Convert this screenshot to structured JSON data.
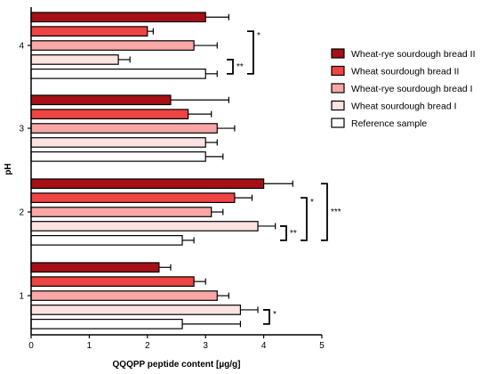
{
  "chart_data": {
    "type": "bar",
    "orientation": "horizontal",
    "title": "",
    "xlabel": "QQQPP peptide content [µg/g]",
    "ylabel": "pH",
    "xlim": [
      0,
      5
    ],
    "xticks": [
      "0",
      "1",
      "2",
      "3",
      "4",
      "5"
    ],
    "categories": [
      "1",
      "2",
      "3",
      "4"
    ],
    "legend_position": "right",
    "series": [
      {
        "name": "Wheat-rye sourdough bread II",
        "color": "#a50f15",
        "values": [
          2.2,
          4.0,
          2.4,
          3.0
        ],
        "errors": [
          0.2,
          0.5,
          1.0,
          0.4
        ]
      },
      {
        "name": "Wheat sourdough bread II",
        "color": "#ef4444",
        "values": [
          2.8,
          3.5,
          2.7,
          2.0
        ],
        "errors": [
          0.2,
          0.3,
          0.4,
          0.1
        ]
      },
      {
        "name": "Wheat-rye sourdough bread I",
        "color": "#f9a7a7",
        "values": [
          3.2,
          3.1,
          3.2,
          2.8
        ],
        "errors": [
          0.2,
          0.2,
          0.3,
          0.4
        ]
      },
      {
        "name": "Wheat sourdough bread I",
        "color": "#fde2e2",
        "values": [
          3.6,
          3.9,
          3.0,
          1.5
        ],
        "errors": [
          0.3,
          0.3,
          0.2,
          0.2
        ]
      },
      {
        "name": "Reference sample",
        "color": "#ffffff",
        "values": [
          2.6,
          2.6,
          3.0,
          3.0
        ],
        "errors": [
          1.0,
          0.2,
          0.3,
          0.2
        ]
      }
    ],
    "significance": [
      {
        "category": "1",
        "from_series": 3,
        "to_series": 4,
        "label": "*"
      },
      {
        "category": "2",
        "from_series": 0,
        "to_series": 4,
        "label": "***"
      },
      {
        "category": "2",
        "from_series": 1,
        "to_series": 4,
        "label": "*"
      },
      {
        "category": "2",
        "from_series": 3,
        "to_series": 4,
        "label": "**"
      },
      {
        "category": "4",
        "from_series": 1,
        "to_series": 4,
        "label": "*"
      },
      {
        "category": "4",
        "from_series": 3,
        "to_series": 4,
        "label": "**"
      }
    ]
  }
}
